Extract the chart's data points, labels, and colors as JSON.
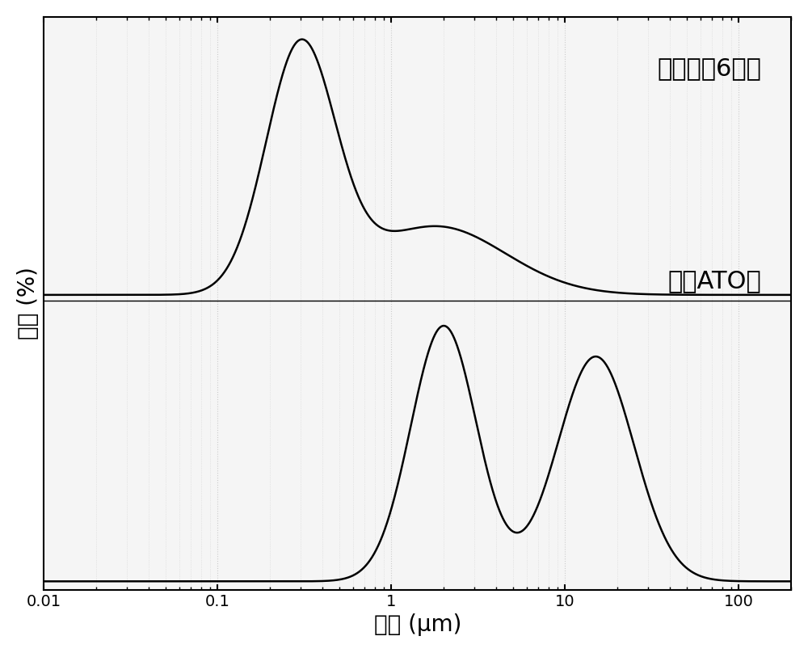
{
  "xlabel": "粒径 (μm)",
  "ylabel": "体积 (%)",
  "label_top": "低温球硈6小时",
  "label_bottom": "市售ATO粉",
  "xmin": 0.01,
  "xmax": 200,
  "background_color": "#ffffff",
  "plot_bg_color": "#f5f5f5",
  "line_color": "#000000",
  "grid_color": "#cccccc",
  "xlabel_fontsize": 20,
  "ylabel_fontsize": 20,
  "tick_fontsize": 14,
  "annotation_fontsize": 22
}
